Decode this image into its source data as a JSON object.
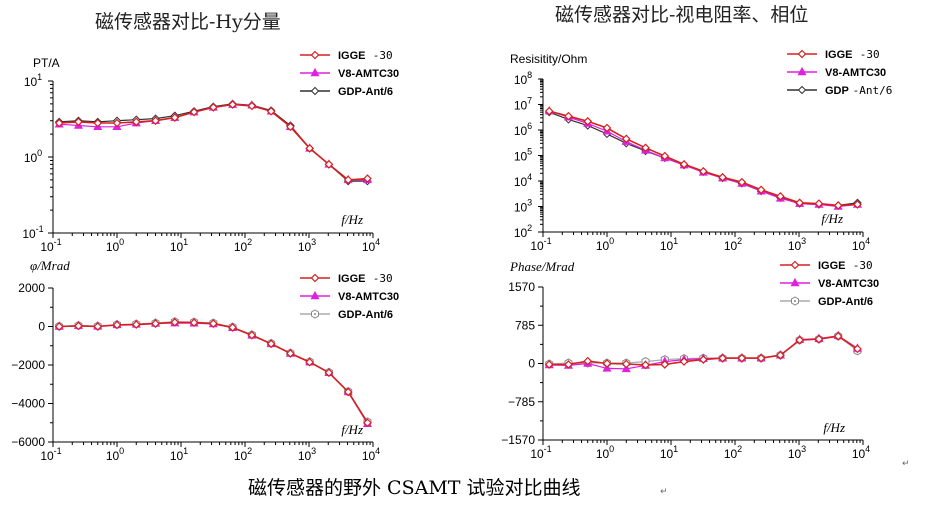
{
  "titles": {
    "left": "磁传感器对比-Hy分量",
    "right": "磁传感器对比-视电阻率、相位"
  },
  "caption": "磁传感器的野外 CSAMT 试验对比曲线",
  "colors": {
    "igge": "#d62020",
    "v8": "#e020e0",
    "gdp": "#303030"
  },
  "chart_data": [
    {
      "type": "line",
      "ylabel": "PT/A",
      "xlabel": "f/Hz",
      "xscale": "log",
      "yscale": "log",
      "xlim": [
        0.1,
        10000
      ],
      "ylim": [
        0.1,
        10
      ],
      "x_ticks": [
        {
          "v": 0.1,
          "base": "10",
          "exp": "-1"
        },
        {
          "v": 1,
          "base": "10",
          "exp": "0"
        },
        {
          "v": 10,
          "base": "10",
          "exp": "1"
        },
        {
          "v": 100,
          "base": "10",
          "exp": "2"
        },
        {
          "v": 1000,
          "base": "10",
          "exp": "3"
        },
        {
          "v": 10000,
          "base": "10",
          "exp": "4"
        }
      ],
      "y_ticks": [
        {
          "v": 0.1,
          "base": "10",
          "exp": "-1"
        },
        {
          "v": 1,
          "base": "10",
          "exp": "0"
        },
        {
          "v": 10,
          "base": "10",
          "exp": "1"
        }
      ],
      "x": [
        0.125,
        0.25,
        0.5,
        1,
        2,
        4,
        8,
        16,
        32,
        64,
        128,
        256,
        512,
        1024,
        2048,
        4096,
        8192
      ],
      "series": [
        {
          "name": "IGGE",
          "name_suffix": "-30",
          "color_key": "igge",
          "marker": "diamond",
          "values": [
            2.8,
            2.9,
            2.8,
            2.8,
            2.9,
            3.0,
            3.3,
            3.9,
            4.5,
            4.9,
            4.7,
            4.0,
            2.5,
            1.3,
            0.8,
            0.5,
            0.52
          ]
        },
        {
          "name": "V8-AMTC30",
          "color_key": "v8",
          "marker": "triangle",
          "values": [
            2.7,
            2.6,
            2.5,
            2.5,
            2.8,
            3.0,
            3.3,
            3.9,
            4.5,
            4.9,
            4.8,
            4.0,
            2.5,
            1.3,
            0.8,
            0.5,
            0.5
          ]
        },
        {
          "name": "GDP-Ant/6",
          "color_key": "gdp",
          "marker": "diamond-open",
          "values": [
            2.9,
            3.0,
            2.9,
            3.0,
            3.1,
            3.2,
            3.5,
            4.0,
            4.6,
            5.0,
            4.8,
            4.1,
            2.6,
            1.3,
            0.8,
            0.48,
            0.48
          ]
        }
      ]
    },
    {
      "type": "line",
      "ylabel": "Resisitity/Ohm",
      "xlabel": "f/Hz",
      "xscale": "log",
      "yscale": "log",
      "xlim": [
        0.1,
        10000
      ],
      "ylim": [
        100,
        100000000
      ],
      "x_ticks": [
        {
          "v": 0.1,
          "base": "10",
          "exp": "-1"
        },
        {
          "v": 1,
          "base": "10",
          "exp": "0"
        },
        {
          "v": 10,
          "base": "10",
          "exp": "1"
        },
        {
          "v": 100,
          "base": "10",
          "exp": "2"
        },
        {
          "v": 1000,
          "base": "10",
          "exp": "3"
        },
        {
          "v": 10000,
          "base": "10",
          "exp": "4"
        }
      ],
      "y_ticks": [
        {
          "v": 100,
          "base": "10",
          "exp": "2"
        },
        {
          "v": 1000,
          "base": "10",
          "exp": "3"
        },
        {
          "v": 10000,
          "base": "10",
          "exp": "4"
        },
        {
          "v": 100000,
          "base": "10",
          "exp": "5"
        },
        {
          "v": 1000000,
          "base": "10",
          "exp": "6"
        },
        {
          "v": 10000000,
          "base": "10",
          "exp": "7"
        },
        {
          "v": 100000000,
          "base": "10",
          "exp": "8"
        }
      ],
      "x": [
        0.125,
        0.25,
        0.5,
        1,
        2,
        4,
        8,
        16,
        32,
        64,
        128,
        256,
        512,
        1024,
        2048,
        4096,
        8192
      ],
      "series": [
        {
          "name": "IGGE",
          "name_suffix": "-30",
          "color_key": "igge",
          "marker": "diamond",
          "values": [
            5500000,
            3500000,
            2200000,
            1200000,
            450000,
            200000,
            95000,
            45000,
            24000,
            14000,
            9000,
            4500,
            2500,
            1400,
            1300,
            1100,
            1200
          ]
        },
        {
          "name": "V8-AMTC30",
          "color_key": "v8",
          "marker": "triangle",
          "values": [
            5500000,
            3200000,
            1800000,
            900000,
            350000,
            160000,
            80000,
            42000,
            22000,
            13000,
            8000,
            4000,
            2100,
            1300,
            1200,
            1000,
            1200
          ]
        },
        {
          "name": "GDP",
          "name_suffix": "-Ant/6",
          "color_key": "gdp",
          "marker": "diamond-open",
          "values": [
            5000000,
            2600000,
            1500000,
            700000,
            300000,
            150000,
            80000,
            42000,
            23000,
            13000,
            8000,
            4000,
            2200,
            1300,
            1200,
            1100,
            1400
          ]
        }
      ]
    },
    {
      "type": "line",
      "ylabel": "φ/Mrad",
      "xlabel": "f/Hz",
      "xscale": "log",
      "xlim": [
        0.1,
        10000
      ],
      "ylim": [
        -6000,
        2000
      ],
      "x_ticks": [
        {
          "v": 0.1,
          "base": "10",
          "exp": "-1"
        },
        {
          "v": 1,
          "base": "10",
          "exp": "0"
        },
        {
          "v": 10,
          "base": "10",
          "exp": "1"
        },
        {
          "v": 100,
          "base": "10",
          "exp": "2"
        },
        {
          "v": 1000,
          "base": "10",
          "exp": "3"
        },
        {
          "v": 10000,
          "base": "10",
          "exp": "4"
        }
      ],
      "y_ticks": [
        {
          "v": 2000,
          "label": "2000"
        },
        {
          "v": 0,
          "label": "0"
        },
        {
          "v": -2000,
          "label": "−2000"
        },
        {
          "v": -4000,
          "label": "−4000"
        },
        {
          "v": -6000,
          "label": "−6000"
        }
      ],
      "x": [
        0.125,
        0.25,
        0.5,
        1,
        2,
        4,
        8,
        16,
        32,
        64,
        128,
        256,
        512,
        1024,
        2048,
        4096,
        8192
      ],
      "series": [
        {
          "name": "IGGE",
          "name_suffix": "-30",
          "color_key": "igge",
          "marker": "diamond",
          "values": [
            0,
            30,
            0,
            80,
            100,
            150,
            220,
            200,
            150,
            -50,
            -450,
            -900,
            -1400,
            -1850,
            -2400,
            -3400,
            -5000
          ]
        },
        {
          "name": "V8-AMTC30",
          "color_key": "v8",
          "marker": "triangle",
          "values": [
            0,
            40,
            10,
            90,
            110,
            160,
            180,
            170,
            130,
            -60,
            -460,
            -900,
            -1400,
            -1850,
            -2400,
            -3400,
            -5050
          ]
        },
        {
          "name": "GDP-Ant/6",
          "color_key": "gdp",
          "marker": "star-open",
          "values": [
            10,
            50,
            20,
            100,
            130,
            180,
            250,
            230,
            180,
            -30,
            -430,
            -880,
            -1380,
            -1830,
            -2380,
            -3380,
            -4950
          ]
        }
      ]
    },
    {
      "type": "line",
      "ylabel": "Phase/Mrad",
      "xlabel": "f/Hz",
      "xscale": "log",
      "xlim": [
        0.1,
        10000
      ],
      "ylim": [
        -1570,
        1570
      ],
      "x_ticks": [
        {
          "v": 0.1,
          "base": "10",
          "exp": "-1"
        },
        {
          "v": 1,
          "base": "10",
          "exp": "0"
        },
        {
          "v": 10,
          "base": "10",
          "exp": "1"
        },
        {
          "v": 100,
          "base": "10",
          "exp": "2"
        },
        {
          "v": 1000,
          "base": "10",
          "exp": "3"
        },
        {
          "v": 10000,
          "base": "10",
          "exp": "4"
        }
      ],
      "y_ticks": [
        {
          "v": 1570,
          "label": "1570"
        },
        {
          "v": 785,
          "label": "785"
        },
        {
          "v": 0,
          "label": "0"
        },
        {
          "v": -785,
          "label": "−785"
        },
        {
          "v": -1570,
          "label": "−1570"
        }
      ],
      "x": [
        0.125,
        0.25,
        0.5,
        1,
        2,
        4,
        8,
        16,
        32,
        64,
        128,
        256,
        512,
        1024,
        2048,
        4096,
        8192
      ],
      "series": [
        {
          "name": "IGGE",
          "name_suffix": "-30",
          "color_key": "igge",
          "marker": "diamond",
          "values": [
            -20,
            -20,
            50,
            0,
            -10,
            -30,
            -20,
            40,
            80,
            110,
            110,
            110,
            170,
            480,
            500,
            560,
            300
          ]
        },
        {
          "name": "V8-AMTC30",
          "color_key": "v8",
          "marker": "triangle",
          "values": [
            -30,
            -40,
            0,
            -100,
            -110,
            -40,
            40,
            80,
            100,
            110,
            110,
            110,
            170,
            490,
            510,
            570,
            310
          ]
        },
        {
          "name": "GDP-Ant/6",
          "color_key": "gdp",
          "marker": "star-open",
          "values": [
            -10,
            10,
            10,
            10,
            10,
            40,
            80,
            100,
            110,
            110,
            110,
            110,
            170,
            480,
            500,
            560,
            260
          ]
        }
      ]
    }
  ]
}
